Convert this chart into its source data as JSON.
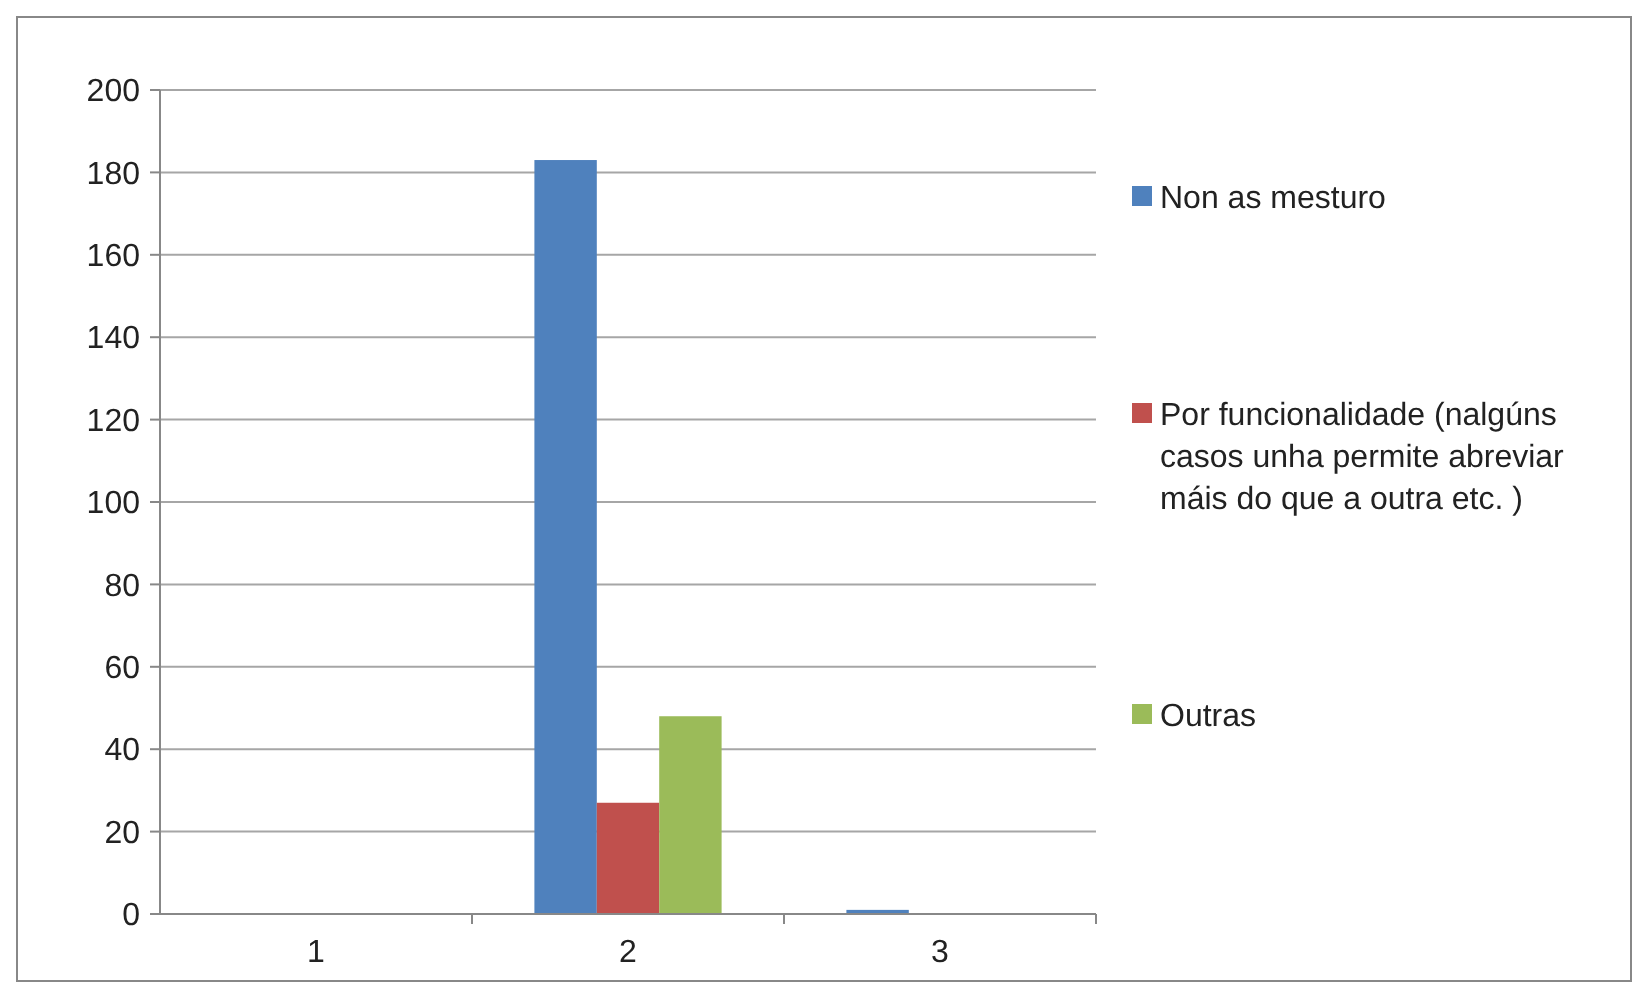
{
  "chart_data": {
    "type": "bar",
    "categories": [
      "1",
      "2",
      "3"
    ],
    "series": [
      {
        "name": "Non as mesturo",
        "color": "#4f81bd",
        "values": [
          0,
          183,
          1
        ]
      },
      {
        "name": "Por funcionalidade (nalgúns casos unha permite abreviar máis do que a outra etc. )",
        "color": "#c0504d",
        "values": [
          0,
          27,
          0
        ]
      },
      {
        "name": "Outras",
        "color": "#9bbb59",
        "values": [
          0,
          48,
          0
        ]
      }
    ],
    "ylim": [
      0,
      200
    ],
    "yticks": [
      0,
      20,
      40,
      60,
      80,
      100,
      120,
      140,
      160,
      180,
      200
    ],
    "grid": "y",
    "legend": "right"
  }
}
